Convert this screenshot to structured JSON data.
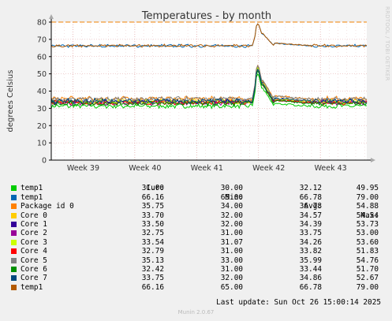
{
  "chart_data": {
    "type": "line",
    "title": "Temperatures - by month",
    "ylabel": "degrees Celsius",
    "xlabel": "",
    "ylim": [
      0,
      80
    ],
    "yticks": [
      0,
      10,
      20,
      30,
      40,
      50,
      60,
      70,
      80
    ],
    "x_range_weeks": [
      38.65,
      43.75
    ],
    "xticks": [
      {
        "week": 39,
        "label": "Week 39"
      },
      {
        "week": 40,
        "label": "Week 40"
      },
      {
        "week": 41,
        "label": "Week 41"
      },
      {
        "week": 42,
        "label": "Week 42"
      },
      {
        "week": 43,
        "label": "Week 43"
      }
    ],
    "warning_line": 80,
    "grid": true,
    "spike_week": 41.95,
    "series": [
      {
        "name": "temp1",
        "color": "#00cc00",
        "cur": "31.00",
        "min": "30.00",
        "avg": "32.12",
        "max": "49.95",
        "base": 31.3
      },
      {
        "name": "temp1",
        "color": "#0066b3",
        "cur": "66.16",
        "min": "65.00",
        "avg": "66.78",
        "max": "79.00",
        "base": 66.2
      },
      {
        "name": "Package id 0",
        "color": "#ff8000",
        "cur": "35.75",
        "min": "34.00",
        "avg": "36.78",
        "max": "54.88",
        "base": 35.6
      },
      {
        "name": "Core 0",
        "color": "#ffcc00",
        "cur": "33.70",
        "min": "32.00",
        "avg": "34.57",
        "max": "54.54",
        "base": 34.1
      },
      {
        "name": "Core 1",
        "color": "#330099",
        "cur": "33.50",
        "min": "32.00",
        "avg": "34.39",
        "max": "53.73",
        "base": 33.9
      },
      {
        "name": "Core 2",
        "color": "#990099",
        "cur": "32.75",
        "min": "31.00",
        "avg": "33.75",
        "max": "53.00",
        "base": 33.2
      },
      {
        "name": "Core 3",
        "color": "#ccff00",
        "cur": "33.54",
        "min": "31.07",
        "avg": "34.26",
        "max": "53.60",
        "base": 33.8
      },
      {
        "name": "Core 4",
        "color": "#ff0000",
        "cur": "32.79",
        "min": "31.00",
        "avg": "33.82",
        "max": "51.83",
        "base": 33.3
      },
      {
        "name": "Core 5",
        "color": "#808080",
        "cur": "35.13",
        "min": "33.00",
        "avg": "35.99",
        "max": "54.76",
        "base": 35.4
      },
      {
        "name": "Core 6",
        "color": "#008f00",
        "cur": "32.42",
        "min": "31.00",
        "avg": "33.44",
        "max": "51.70",
        "base": 32.9
      },
      {
        "name": "Core 7",
        "color": "#00487d",
        "cur": "33.75",
        "min": "32.00",
        "avg": "34.86",
        "max": "52.67",
        "base": 34.3
      },
      {
        "name": "temp1",
        "color": "#b35a00",
        "cur": "66.16",
        "min": "65.00",
        "avg": "66.78",
        "max": "79.00",
        "base": 66.3
      }
    ]
  },
  "legend_headers": {
    "cur": "Cur:",
    "min": "Min:",
    "avg": "Avg:",
    "max": "Max:"
  },
  "last_update": "Last update: Sun Oct 26 15:00:14 2025",
  "footer": "Munin 2.0.67",
  "side_label": "RRDTOOL / TOBI OETIKER"
}
